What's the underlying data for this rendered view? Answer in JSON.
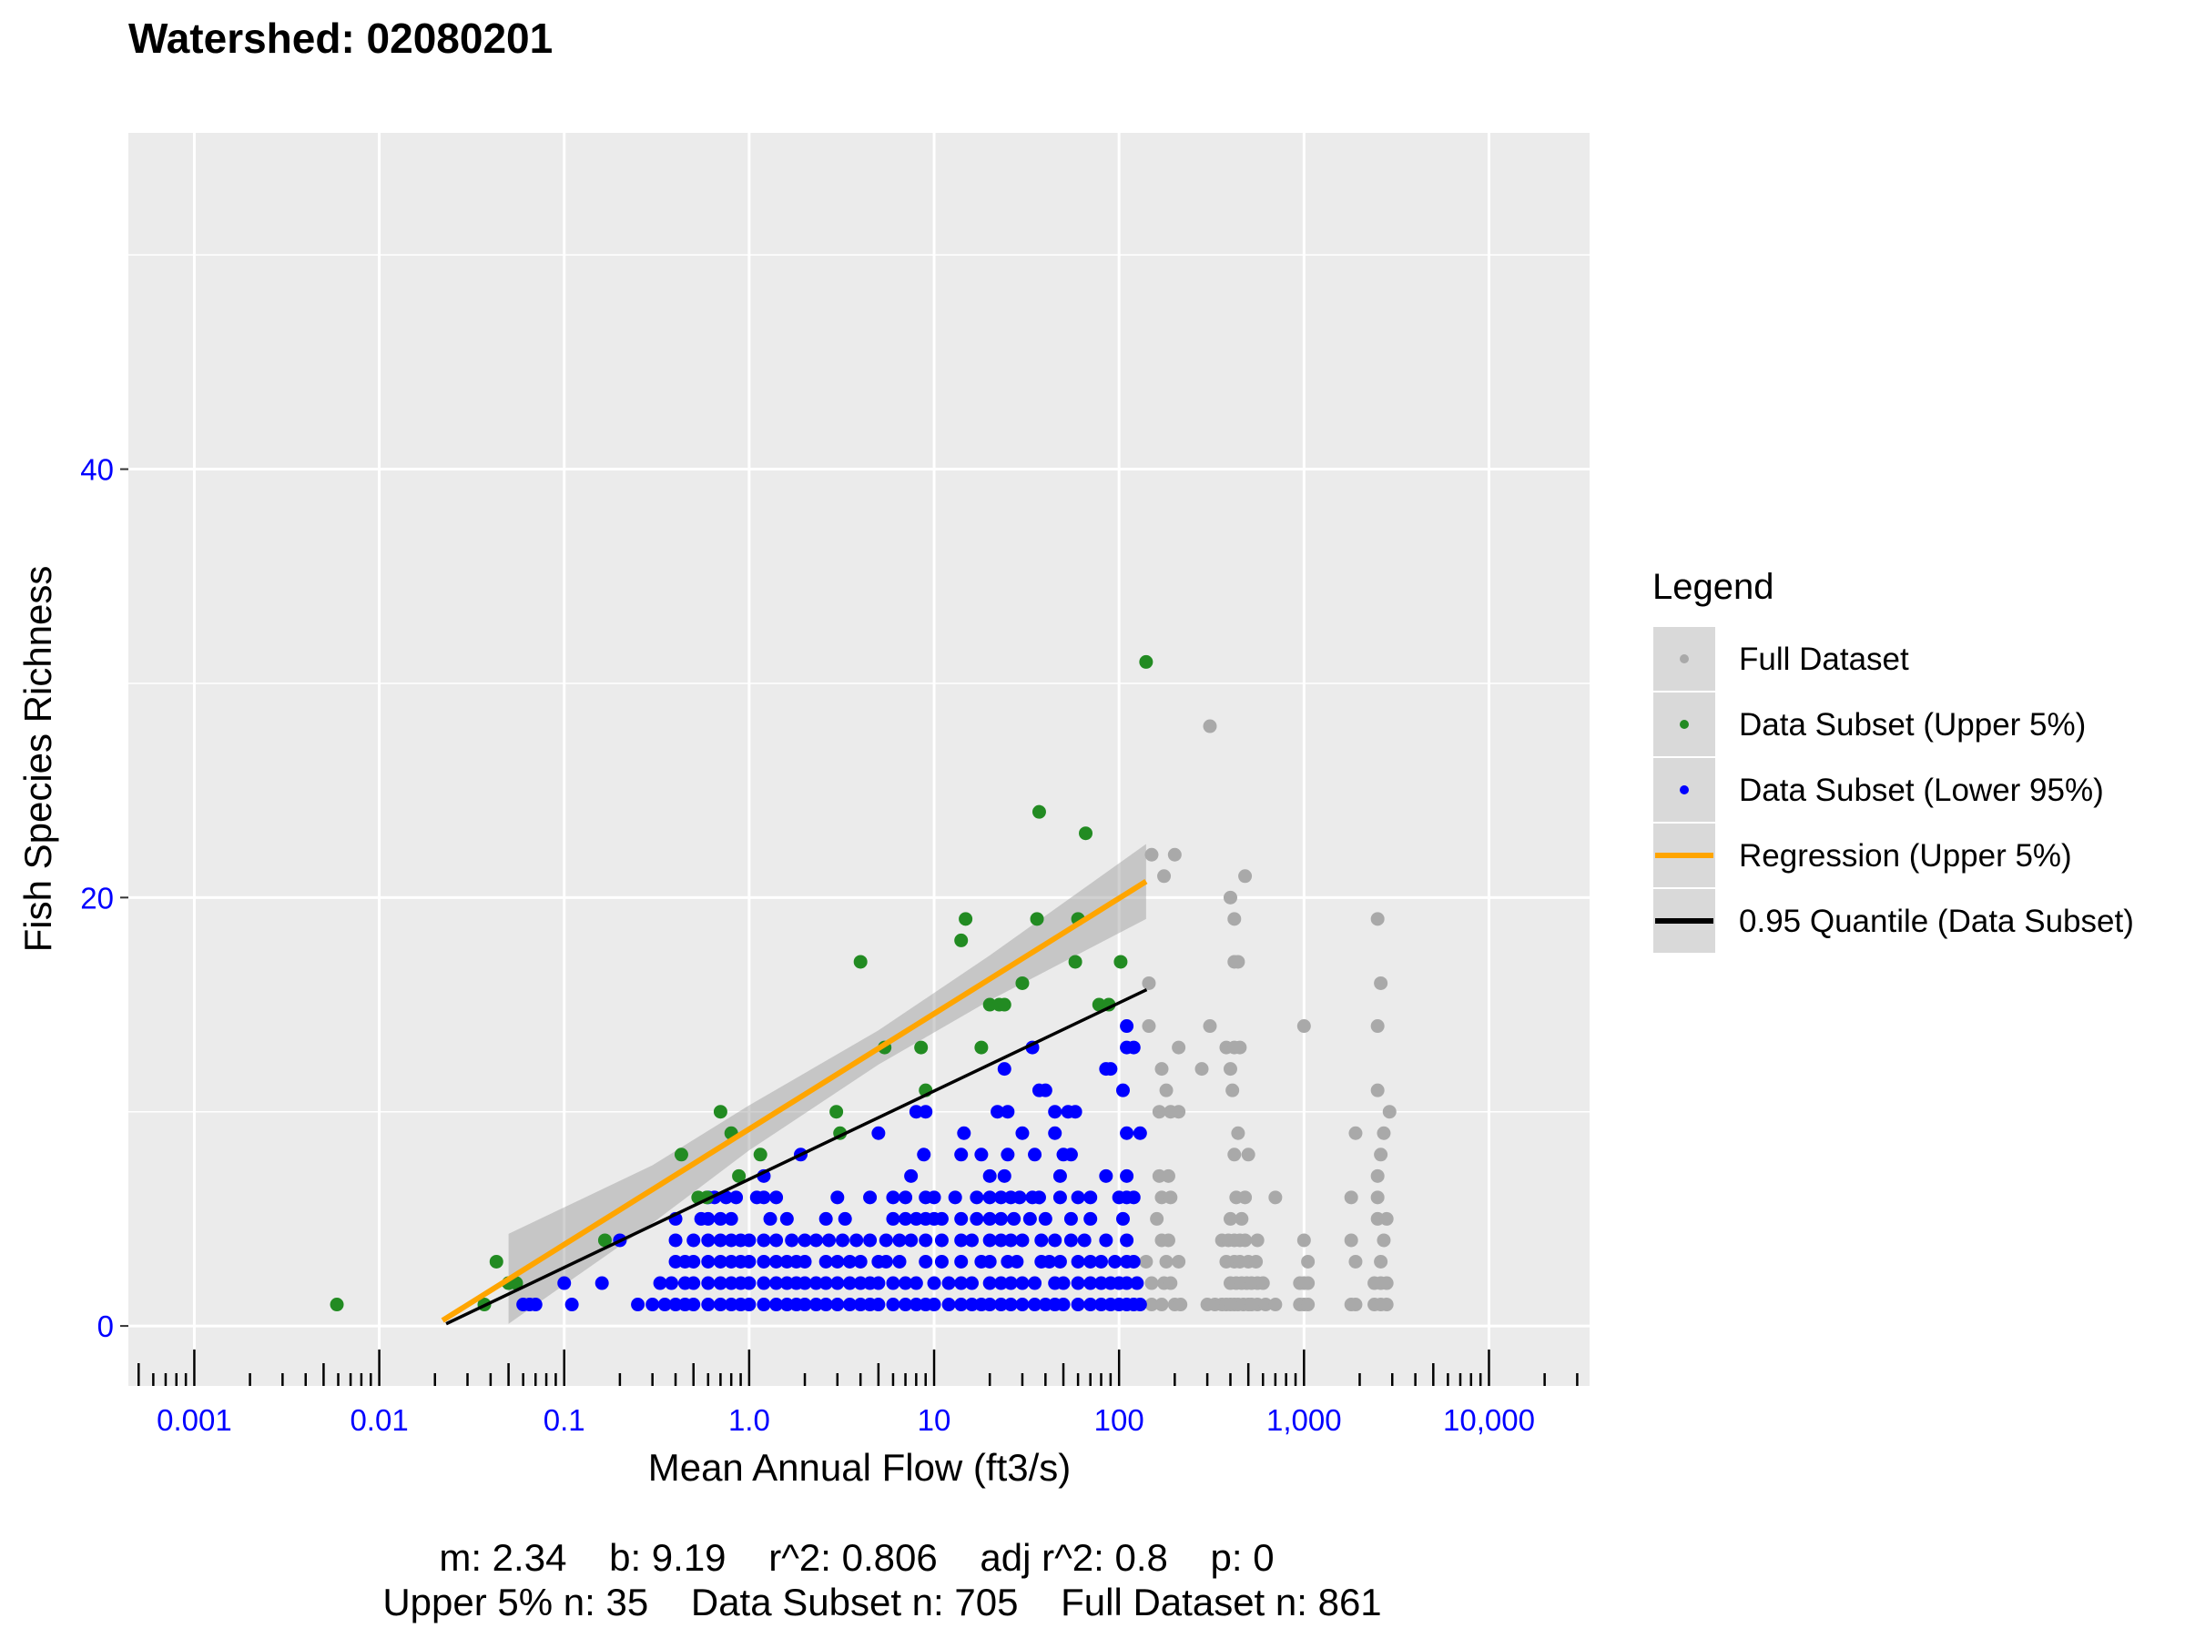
{
  "chart_data": {
    "type": "scatter",
    "title": "Watershed: 02080201",
    "xlabel": "Mean Annual Flow (ft3/s)",
    "ylabel": "Fish Species Richness",
    "x_scale": "log10",
    "xlim": [
      0.00044,
      35000
    ],
    "ylim": [
      -2.8,
      55.7
    ],
    "x_ticks": [
      0.001,
      0.01,
      0.1,
      1,
      10,
      100,
      1000,
      10000
    ],
    "x_tick_labels": [
      "0.001",
      "0.01",
      "0.1",
      "1.0",
      "10",
      "100",
      "1,000",
      "10,000"
    ],
    "y_ticks": [
      0,
      20,
      40
    ],
    "y_tick_labels": [
      "0",
      "20",
      "40"
    ],
    "y_minor_grid": [
      10,
      30,
      50
    ],
    "grid": true,
    "log_ticks": "bottom",
    "colors": {
      "panel": "#EBEBEB",
      "grid": "#FFFFFF",
      "full": "#A9A9A9",
      "upper": "#228B22",
      "lower": "#0000FF",
      "regression": "#FFA500",
      "quantile": "#000000",
      "band": "#CACACA",
      "tick_label": "#0000FF"
    },
    "legend": {
      "title": "Legend",
      "placement": "right",
      "entries": [
        {
          "label": "Full Dataset",
          "kind": "point",
          "color": "#A9A9A9"
        },
        {
          "label": "Data Subset (Upper 5%)",
          "kind": "point",
          "color": "#228B22"
        },
        {
          "label": "Data Subset (Lower 95%)",
          "kind": "point",
          "color": "#0000FF"
        },
        {
          "label": "Regression (Upper 5%)",
          "kind": "line",
          "color": "#FFA500"
        },
        {
          "label": "0.95 Quantile (Data Subset)",
          "kind": "line",
          "color": "#000000"
        }
      ]
    },
    "series": [
      {
        "name": "Full Dataset",
        "rows": [
          {
            "y": 1,
            "x": [
              150,
              170,
              200,
              215,
              300,
              330,
              360,
              380,
              400,
              420,
              440,
              470,
              500,
              520,
              560,
              620,
              700,
              950,
              1000,
              1050,
              1800,
              1900,
              2400,
              2600,
              2800
            ]
          },
          {
            "y": 2,
            "x": [
              150,
              175,
              190,
              400,
              430,
              460,
              490,
              520,
              560,
              600,
              950,
              1000,
              1050,
              2400,
              2600,
              2800
            ]
          },
          {
            "y": 3,
            "x": [
              140,
              180,
              210,
              380,
              420,
              450,
              500,
              550,
              1050,
              1900,
              2600
            ]
          },
          {
            "y": 4,
            "x": [
              170,
              185,
              360,
              390,
              420,
              450,
              480,
              560,
              1000,
              1800,
              2700
            ]
          },
          {
            "y": 5,
            "x": [
              160,
              400,
              460,
              2500,
              2800
            ]
          },
          {
            "y": 6,
            "x": [
              170,
              190,
              430,
              480,
              700,
              1800,
              2500
            ]
          },
          {
            "y": 7,
            "x": [
              165,
              185,
              2500
            ]
          },
          {
            "y": 8,
            "x": [
              420,
              500,
              2600
            ]
          },
          {
            "y": 9,
            "x": [
              440,
              1900,
              2700
            ]
          },
          {
            "y": 10,
            "x": [
              165,
              190,
              210,
              2900
            ]
          },
          {
            "y": 11,
            "x": [
              180,
              410,
              2500
            ]
          },
          {
            "y": 12,
            "x": [
              170,
              280,
              400
            ]
          },
          {
            "y": 13,
            "x": [
              210,
              380,
              420,
              450
            ]
          },
          {
            "y": 14,
            "x": [
              145,
              310,
              1000,
              2500
            ]
          },
          {
            "y": 16,
            "x": [
              145,
              2600
            ]
          },
          {
            "y": 17,
            "x": [
              420,
              440
            ]
          },
          {
            "y": 19,
            "x": [
              420,
              2500
            ]
          },
          {
            "y": 20,
            "x": [
              400
            ]
          },
          {
            "y": 21,
            "x": [
              175,
              480
            ]
          },
          {
            "y": 22,
            "x": [
              150,
              200
            ]
          },
          {
            "y": 28,
            "x": [
              310
            ]
          }
        ]
      },
      {
        "name": "Data Subset (Lower 95%)",
        "rows": [
          {
            "y": 1,
            "x": [
              0.06,
              0.065,
              0.07,
              0.11,
              0.25,
              0.3,
              0.35,
              0.4,
              0.45,
              0.5,
              0.6,
              0.7,
              0.8,
              0.9,
              1,
              1.2,
              1.4,
              1.6,
              1.8,
              2,
              2.3,
              2.6,
              3,
              3.5,
              4,
              4.5,
              5,
              6,
              7,
              8,
              9,
              10,
              12,
              14,
              16,
              18,
              20,
              23,
              26,
              30,
              35,
              40,
              45,
              50,
              60,
              70,
              80,
              90,
              100,
              110,
              120,
              130
            ]
          },
          {
            "y": 2,
            "x": [
              0.1,
              0.16,
              0.33,
              0.38,
              0.45,
              0.5,
              0.6,
              0.7,
              0.8,
              0.9,
              1,
              1.2,
              1.4,
              1.6,
              1.8,
              2,
              2.3,
              2.6,
              3,
              3.5,
              4,
              4.5,
              5,
              6,
              7,
              8,
              10,
              12,
              14,
              16,
              20,
              23,
              26,
              30,
              35,
              45,
              50,
              60,
              70,
              80,
              90,
              100,
              110,
              125
            ]
          },
          {
            "y": 3,
            "x": [
              0.4,
              0.45,
              0.5,
              0.6,
              0.7,
              0.8,
              0.9,
              1,
              1.2,
              1.4,
              1.6,
              1.8,
              2,
              2.6,
              3,
              3.5,
              4,
              5,
              5.5,
              6.5,
              9,
              11,
              14,
              18,
              20,
              25,
              28,
              38,
              42,
              48,
              60,
              70,
              80,
              95,
              110,
              120
            ]
          },
          {
            "y": 4,
            "x": [
              0.2,
              0.4,
              0.5,
              0.6,
              0.7,
              0.8,
              0.9,
              1,
              1.2,
              1.4,
              1.7,
              2,
              2.3,
              2.7,
              3.2,
              3.8,
              4.5,
              5.5,
              6.5,
              7.5,
              9,
              11,
              14,
              16,
              20,
              23,
              26,
              30,
              38,
              45,
              55,
              65,
              85,
              110
            ]
          },
          {
            "y": 5,
            "x": [
              0.4,
              0.55,
              0.6,
              0.7,
              0.8,
              1.3,
              1.6,
              2.6,
              3.3,
              6,
              7,
              8,
              9,
              10,
              11,
              14,
              17,
              20,
              23,
              27,
              33,
              40,
              55,
              70,
              105
            ]
          },
          {
            "y": 6,
            "x": [
              0.6,
              0.65,
              0.75,
              0.85,
              1.1,
              1.2,
              1.4,
              3,
              4.5,
              6,
              7,
              9,
              10,
              13,
              17,
              20,
              23,
              26,
              29,
              34,
              37,
              48,
              60,
              70,
              100,
              110,
              120
            ]
          },
          {
            "y": 7,
            "x": [
              1.2,
              7.5,
              20,
              24,
              48,
              85,
              110
            ]
          },
          {
            "y": 8,
            "x": [
              1.9,
              8.8,
              14,
              18,
              25,
              35,
              50,
              55
            ]
          },
          {
            "y": 9,
            "x": [
              5,
              14.5,
              30,
              45,
              110,
              130
            ]
          },
          {
            "y": 10,
            "x": [
              8,
              9,
              22,
              25,
              45,
              53,
              58
            ]
          },
          {
            "y": 11,
            "x": [
              37,
              40,
              105
            ]
          },
          {
            "y": 12,
            "x": [
              24,
              85,
              90
            ]
          },
          {
            "y": 13,
            "x": [
              34,
              110,
              120
            ]
          },
          {
            "y": 14,
            "x": [
              110
            ]
          }
        ]
      },
      {
        "name": "Data Subset (Upper 5%)",
        "points": [
          [
            0.0059,
            1
          ],
          [
            0.037,
            1
          ],
          [
            0.043,
            3
          ],
          [
            0.05,
            2
          ],
          [
            0.055,
            2
          ],
          [
            0.166,
            4
          ],
          [
            0.43,
            8
          ],
          [
            0.53,
            6
          ],
          [
            0.59,
            6
          ],
          [
            0.7,
            10
          ],
          [
            0.8,
            9
          ],
          [
            0.88,
            7
          ],
          [
            1.15,
            8
          ],
          [
            2.96,
            10
          ],
          [
            3.1,
            9
          ],
          [
            4.0,
            17
          ],
          [
            5.4,
            13
          ],
          [
            8.5,
            13
          ],
          [
            9.0,
            11
          ],
          [
            14,
            18
          ],
          [
            14.8,
            19
          ],
          [
            18,
            13
          ],
          [
            20,
            15
          ],
          [
            22.5,
            15
          ],
          [
            24,
            15
          ],
          [
            30,
            16
          ],
          [
            36,
            19
          ],
          [
            37,
            24
          ],
          [
            58,
            17
          ],
          [
            60,
            19
          ],
          [
            66,
            23
          ],
          [
            78,
            15
          ],
          [
            88,
            15
          ],
          [
            102,
            17
          ],
          [
            140,
            31
          ]
        ]
      }
    ],
    "regression": {
      "name": "Regression (Upper 5%)",
      "formula": "y = 2.34*ln(x) + 9.19",
      "m": 2.34,
      "b": 9.19,
      "x_range": [
        0.022,
        140
      ]
    },
    "ci_band": [
      [
        0.05,
        0.1,
        4.3
      ],
      [
        0.3,
        4.8,
        7.5
      ],
      [
        1,
        8.2,
        10.3
      ],
      [
        5,
        12.2,
        13.8
      ],
      [
        20,
        15.2,
        17.3
      ],
      [
        140,
        19.0,
        22.5
      ]
    ],
    "quantile": {
      "name": "0.95 Quantile (Data Subset)",
      "points": [
        [
          0.023,
          0.1
        ],
        [
          141,
          15.7
        ]
      ]
    }
  },
  "stats": {
    "line1": "m: 2.34    b: 9.19    r^2: 0.806    adj r^2: 0.8    p: 0",
    "line2": "Upper 5% n: 35    Data Subset n: 705    Full Dataset n: 861"
  }
}
